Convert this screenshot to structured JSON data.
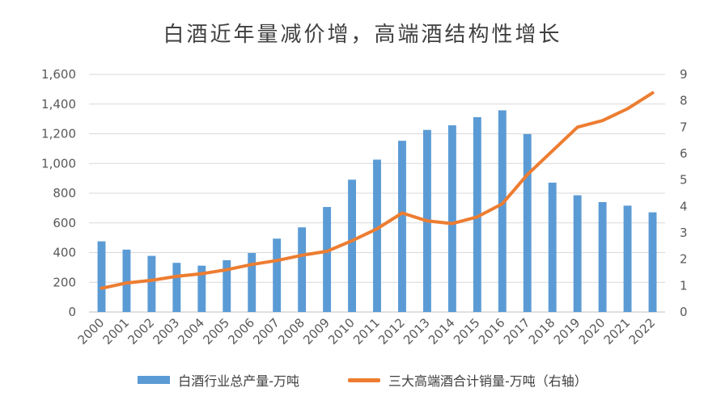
{
  "chart_data": {
    "type": "bar",
    "title": "白酒近年量减价增，高端酒结构性增长",
    "categories": [
      "2000",
      "2001",
      "2002",
      "2003",
      "2004",
      "2005",
      "2006",
      "2007",
      "2008",
      "2009",
      "2010",
      "2011",
      "2012",
      "2013",
      "2014",
      "2015",
      "2016",
      "2017",
      "2018",
      "2019",
      "2020",
      "2021",
      "2022"
    ],
    "series": [
      {
        "name": "白酒行业总产量-万吨",
        "type": "bar",
        "axis": "left",
        "color": "#5B9BD5",
        "values": [
          476,
          420,
          378,
          331,
          312,
          349,
          397,
          494,
          570,
          707,
          891,
          1026,
          1153,
          1226,
          1257,
          1312,
          1358,
          1198,
          871,
          786,
          740,
          716,
          671
        ]
      },
      {
        "name": "三大高端酒合计销量-万吨（右轴）",
        "type": "line",
        "axis": "right",
        "color": "#ED7D31",
        "values": [
          0.9,
          1.1,
          1.2,
          1.35,
          1.45,
          1.6,
          1.8,
          1.95,
          2.15,
          2.3,
          2.7,
          3.15,
          3.75,
          3.45,
          3.35,
          3.6,
          4.1,
          5.2,
          6.1,
          7.0,
          7.25,
          7.7,
          8.3
        ]
      }
    ],
    "y_left": {
      "min": 0,
      "max": 1600,
      "ticks": [
        0,
        200,
        400,
        600,
        800,
        1000,
        1200,
        1400,
        1600
      ],
      "tick_labels": [
        "0",
        "200",
        "400",
        "600",
        "800",
        "1,000",
        "1,200",
        "1,400",
        "1,600"
      ]
    },
    "y_right": {
      "min": 0,
      "max": 9,
      "ticks": [
        0,
        1,
        2,
        3,
        4,
        5,
        6,
        7,
        8,
        9
      ],
      "tick_labels": [
        "0",
        "1",
        "2",
        "3",
        "4",
        "5",
        "6",
        "7",
        "8",
        "9"
      ]
    },
    "grid": true,
    "legend": "bottom"
  }
}
